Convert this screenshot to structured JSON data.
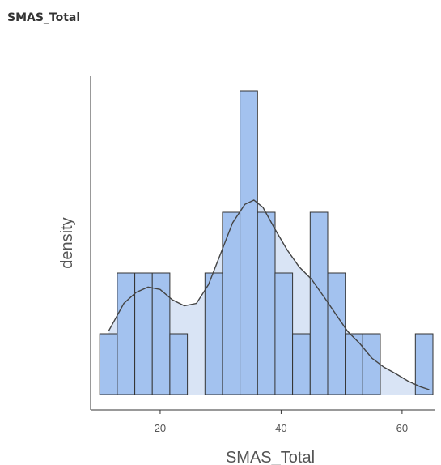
{
  "panel": {
    "title": "SMAS_Total"
  },
  "chart_data": {
    "type": "histogram",
    "xlabel": "SMAS_Total",
    "ylabel": "density",
    "xlim": [
      8.5,
      65.5
    ],
    "x_ticks": [
      20,
      40,
      60
    ],
    "y_ticks_shown": false,
    "grid": false,
    "bin_width": 2.9,
    "bins": [
      {
        "start": 10.0,
        "end": 12.9,
        "count": 1
      },
      {
        "start": 12.9,
        "end": 15.8,
        "count": 2
      },
      {
        "start": 15.8,
        "end": 18.7,
        "count": 2
      },
      {
        "start": 18.7,
        "end": 21.6,
        "count": 2
      },
      {
        "start": 21.6,
        "end": 24.5,
        "count": 1
      },
      {
        "start": 24.5,
        "end": 27.4,
        "count": 0
      },
      {
        "start": 27.4,
        "end": 30.3,
        "count": 2
      },
      {
        "start": 30.3,
        "end": 33.2,
        "count": 3
      },
      {
        "start": 33.2,
        "end": 36.1,
        "count": 5
      },
      {
        "start": 36.1,
        "end": 39.0,
        "count": 3
      },
      {
        "start": 39.0,
        "end": 41.9,
        "count": 2
      },
      {
        "start": 41.9,
        "end": 44.8,
        "count": 1
      },
      {
        "start": 44.8,
        "end": 47.7,
        "count": 3
      },
      {
        "start": 47.7,
        "end": 50.6,
        "count": 2
      },
      {
        "start": 50.6,
        "end": 53.5,
        "count": 1
      },
      {
        "start": 53.5,
        "end": 56.4,
        "count": 1
      },
      {
        "start": 56.4,
        "end": 59.3,
        "count": 0
      },
      {
        "start": 59.3,
        "end": 62.2,
        "count": 0
      },
      {
        "start": 62.2,
        "end": 65.1,
        "count": 1
      }
    ],
    "density_curve": {
      "x": [
        11.5,
        14,
        16,
        18,
        20,
        22,
        24,
        26,
        28,
        30,
        32,
        34,
        35.5,
        37,
        39,
        41,
        43,
        45,
        47,
        49,
        51,
        53,
        55,
        57,
        59,
        61,
        63,
        64.5
      ],
      "y": [
        1.05,
        1.5,
        1.68,
        1.77,
        1.73,
        1.56,
        1.46,
        1.5,
        1.81,
        2.32,
        2.83,
        3.13,
        3.2,
        3.08,
        2.72,
        2.38,
        2.1,
        1.9,
        1.62,
        1.33,
        1.04,
        0.84,
        0.6,
        0.45,
        0.34,
        0.22,
        0.13,
        0.08
      ]
    },
    "colors": {
      "bar_fill": "#a3c2ef",
      "bar_stroke": "#333333",
      "density_fill": "#d9e4f5",
      "density_line": "#444444",
      "axis": "#333333",
      "text": "#555555"
    }
  }
}
